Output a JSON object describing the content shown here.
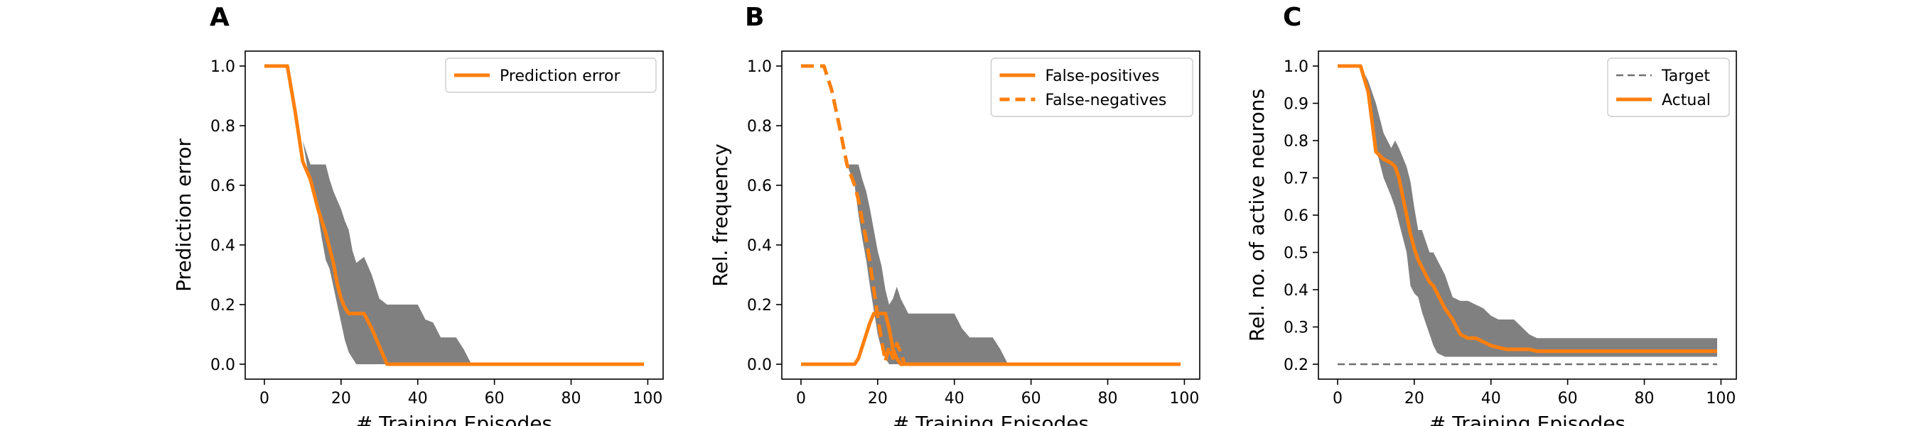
{
  "figure": {
    "background": "#ffffff"
  },
  "chart_data": [
    {
      "panel_letter": "A",
      "type": "line",
      "xlabel": "# Training Episodes",
      "ylabel": "Prediction error",
      "xlim": [
        -5,
        104
      ],
      "ylim": [
        -0.05,
        1.05
      ],
      "xticks": [
        0,
        20,
        40,
        60,
        80,
        100
      ],
      "yticks": [
        0.0,
        0.2,
        0.4,
        0.6,
        0.8,
        1.0
      ],
      "ytick_labels": [
        "0.0",
        "0.2",
        "0.4",
        "0.6",
        "0.8",
        "1.0"
      ],
      "legend": {
        "position": "top-right",
        "entries": [
          {
            "label": "Prediction error",
            "series": 0
          }
        ]
      },
      "band": {
        "color": "#808080",
        "x": [
          0,
          6,
          10,
          12,
          14,
          15,
          16,
          17,
          18,
          19,
          20,
          21,
          22,
          23,
          24,
          25,
          26,
          28,
          30,
          32,
          34,
          36,
          38,
          40,
          42,
          44,
          46,
          48,
          50,
          52,
          54,
          60,
          80,
          99
        ],
        "upper": [
          1.0,
          1.0,
          0.75,
          0.67,
          0.67,
          0.67,
          0.67,
          0.62,
          0.58,
          0.55,
          0.52,
          0.48,
          0.45,
          0.38,
          0.34,
          0.35,
          0.36,
          0.3,
          0.22,
          0.2,
          0.2,
          0.2,
          0.2,
          0.2,
          0.15,
          0.14,
          0.09,
          0.09,
          0.09,
          0.05,
          0.0,
          0.0,
          0.0,
          0.0
        ],
        "lower": [
          1.0,
          1.0,
          0.75,
          0.6,
          0.5,
          0.42,
          0.35,
          0.32,
          0.26,
          0.2,
          0.14,
          0.08,
          0.04,
          0.02,
          0.0,
          0.0,
          0.0,
          0.0,
          0.0,
          0.0,
          0.0,
          0.0,
          0.0,
          0.0,
          0.0,
          0.0,
          0.0,
          0.0,
          0.0,
          0.0,
          0.0,
          0.0,
          0.0,
          0.0
        ]
      },
      "series": [
        {
          "name": "Prediction error",
          "color": "#ff7f0e",
          "dash": "solid",
          "x": [
            0,
            6,
            8,
            10,
            12,
            13,
            14,
            15,
            16,
            17,
            18,
            19,
            20,
            21,
            22,
            24,
            26,
            28,
            30,
            32,
            40,
            60,
            80,
            99
          ],
          "y": [
            1.0,
            1.0,
            0.85,
            0.68,
            0.62,
            0.57,
            0.52,
            0.48,
            0.44,
            0.39,
            0.34,
            0.27,
            0.22,
            0.19,
            0.17,
            0.17,
            0.17,
            0.12,
            0.06,
            0.0,
            0.0,
            0.0,
            0.0,
            0.0
          ]
        }
      ]
    },
    {
      "panel_letter": "B",
      "type": "line",
      "xlabel": "# Training Episodes",
      "ylabel": "Rel. frequency",
      "xlim": [
        -5,
        104
      ],
      "ylim": [
        -0.05,
        1.05
      ],
      "xticks": [
        0,
        20,
        40,
        60,
        80,
        100
      ],
      "yticks": [
        0.0,
        0.2,
        0.4,
        0.6,
        0.8,
        1.0
      ],
      "ytick_labels": [
        "0.0",
        "0.2",
        "0.4",
        "0.6",
        "0.8",
        "1.0"
      ],
      "legend": {
        "position": "top-right",
        "entries": [
          {
            "label": "False-positives",
            "series": 0
          },
          {
            "label": "False-negatives",
            "series": 1
          }
        ]
      },
      "band": {
        "color": "#808080",
        "x": [
          0,
          10,
          12,
          14,
          15,
          16,
          17,
          18,
          19,
          20,
          21,
          22,
          23,
          24,
          25,
          26,
          28,
          30,
          32,
          34,
          36,
          38,
          40,
          42,
          44,
          46,
          48,
          50,
          52,
          54,
          60,
          80,
          99
        ],
        "upper": [
          0.0,
          0.0,
          0.67,
          0.67,
          0.67,
          0.62,
          0.58,
          0.52,
          0.45,
          0.38,
          0.33,
          0.25,
          0.2,
          0.22,
          0.26,
          0.22,
          0.17,
          0.17,
          0.17,
          0.17,
          0.17,
          0.17,
          0.17,
          0.12,
          0.09,
          0.09,
          0.09,
          0.09,
          0.05,
          0.0,
          0.0,
          0.0,
          0.0
        ],
        "lower": [
          0.0,
          0.0,
          0.67,
          0.6,
          0.5,
          0.42,
          0.35,
          0.26,
          0.18,
          0.1,
          0.05,
          0.02,
          0.0,
          0.0,
          0.0,
          0.0,
          0.0,
          0.0,
          0.0,
          0.0,
          0.0,
          0.0,
          0.0,
          0.0,
          0.0,
          0.0,
          0.0,
          0.0,
          0.0,
          0.0,
          0.0,
          0.0,
          0.0
        ]
      },
      "series": [
        {
          "name": "False-positives",
          "color": "#ff7f0e",
          "dash": "solid",
          "x": [
            0,
            14,
            15,
            16,
            17,
            18,
            19,
            20,
            21,
            22,
            23,
            24,
            25,
            26,
            28,
            40,
            60,
            80,
            99
          ],
          "y": [
            0.0,
            0.0,
            0.02,
            0.06,
            0.1,
            0.14,
            0.17,
            0.17,
            0.17,
            0.17,
            0.12,
            0.05,
            0.02,
            0.0,
            0.0,
            0.0,
            0.0,
            0.0,
            0.0
          ]
        },
        {
          "name": "False-negatives",
          "color": "#ff7f0e",
          "dash": "dashed",
          "x": [
            0,
            6,
            8,
            10,
            12,
            14,
            15,
            16,
            17,
            18,
            19,
            20,
            21,
            22,
            23,
            24,
            25,
            26,
            27
          ],
          "y": [
            1.0,
            1.0,
            0.92,
            0.8,
            0.67,
            0.6,
            0.55,
            0.48,
            0.42,
            0.34,
            0.25,
            0.16,
            0.08,
            0.01,
            0.06,
            0.02,
            0.07,
            0.04,
            0.0
          ]
        }
      ]
    },
    {
      "panel_letter": "C",
      "type": "line",
      "xlabel": "# Training Episodes",
      "ylabel": "Rel. no. of active neurons",
      "xlim": [
        -5,
        104
      ],
      "ylim": [
        0.16,
        1.04
      ],
      "xticks": [
        0,
        20,
        40,
        60,
        80,
        100
      ],
      "yticks": [
        0.2,
        0.3,
        0.4,
        0.5,
        0.6,
        0.7,
        0.8,
        0.9,
        1.0
      ],
      "ytick_labels": [
        "0.2",
        "0.3",
        "0.4",
        "0.5",
        "0.6",
        "0.7",
        "0.8",
        "0.9",
        "1.0"
      ],
      "legend": {
        "position": "top-right",
        "entries": [
          {
            "label": "Target",
            "series": 0
          },
          {
            "label": "Actual",
            "series": 1
          }
        ]
      },
      "band": {
        "color": "#808080",
        "x": [
          0,
          6,
          8,
          10,
          12,
          14,
          15,
          16,
          18,
          19,
          20,
          21,
          22,
          23,
          24,
          25,
          26,
          28,
          30,
          32,
          34,
          36,
          38,
          40,
          42,
          44,
          46,
          48,
          50,
          52,
          54,
          60,
          80,
          99
        ],
        "upper": [
          1.0,
          1.0,
          0.96,
          0.9,
          0.82,
          0.78,
          0.8,
          0.78,
          0.73,
          0.69,
          0.62,
          0.56,
          0.56,
          0.53,
          0.5,
          0.5,
          0.48,
          0.44,
          0.38,
          0.37,
          0.37,
          0.36,
          0.35,
          0.33,
          0.32,
          0.32,
          0.32,
          0.3,
          0.28,
          0.27,
          0.27,
          0.27,
          0.27,
          0.27
        ],
        "lower": [
          1.0,
          1.0,
          0.92,
          0.78,
          0.7,
          0.65,
          0.62,
          0.58,
          0.5,
          0.41,
          0.39,
          0.38,
          0.34,
          0.31,
          0.28,
          0.25,
          0.23,
          0.22,
          0.22,
          0.22,
          0.22,
          0.22,
          0.22,
          0.22,
          0.22,
          0.22,
          0.22,
          0.22,
          0.22,
          0.22,
          0.22,
          0.22,
          0.22,
          0.22
        ]
      },
      "series": [
        {
          "name": "Target",
          "color": "#707070",
          "dash": "dashed",
          "x": [
            0,
            99
          ],
          "y": [
            0.2,
            0.2
          ]
        },
        {
          "name": "Actual",
          "color": "#ff7f0e",
          "dash": "solid",
          "x": [
            0,
            6,
            8,
            10,
            12,
            14,
            15,
            16,
            17,
            18,
            19,
            20,
            21,
            22,
            23,
            24,
            25,
            26,
            27,
            28,
            30,
            32,
            34,
            36,
            38,
            40,
            42,
            44,
            46,
            48,
            50,
            52,
            60,
            80,
            99
          ],
          "y": [
            1.0,
            1.0,
            0.93,
            0.77,
            0.75,
            0.74,
            0.73,
            0.7,
            0.65,
            0.6,
            0.55,
            0.51,
            0.48,
            0.46,
            0.44,
            0.42,
            0.41,
            0.39,
            0.37,
            0.35,
            0.32,
            0.28,
            0.27,
            0.27,
            0.26,
            0.25,
            0.245,
            0.24,
            0.24,
            0.24,
            0.24,
            0.235,
            0.235,
            0.235,
            0.235
          ]
        }
      ]
    }
  ]
}
